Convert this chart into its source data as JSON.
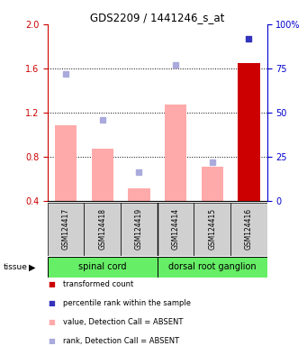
{
  "title": "GDS2209 / 1441246_s_at",
  "samples": [
    "GSM124417",
    "GSM124418",
    "GSM124419",
    "GSM124414",
    "GSM124415",
    "GSM124416"
  ],
  "tissue_groups": [
    {
      "label": "spinal cord",
      "indices": [
        0,
        1,
        2
      ],
      "color": "#66ee66"
    },
    {
      "label": "dorsal root ganglion",
      "indices": [
        3,
        4,
        5
      ],
      "color": "#66ee66"
    }
  ],
  "transformed_count": [
    null,
    null,
    null,
    null,
    null,
    1.65
  ],
  "percentile_rank": [
    null,
    null,
    null,
    null,
    null,
    92
  ],
  "value_absent": [
    1.08,
    0.87,
    0.51,
    1.27,
    0.71,
    null
  ],
  "rank_absent": [
    72,
    46,
    16,
    77,
    22,
    null
  ],
  "ylim_left": [
    0.4,
    2.0
  ],
  "ylim_right": [
    0,
    100
  ],
  "yticks_left": [
    0.4,
    0.8,
    1.2,
    1.6,
    2.0
  ],
  "yticks_right": [
    0,
    25,
    50,
    75,
    100
  ],
  "bar_width": 0.6,
  "red_color": "#cc0000",
  "pink_color": "#ffaaaa",
  "blue_color": "#3333bb",
  "light_blue_color": "#aaaadd",
  "left_label_color": "#cc0000",
  "right_label_color": "#0000cc"
}
